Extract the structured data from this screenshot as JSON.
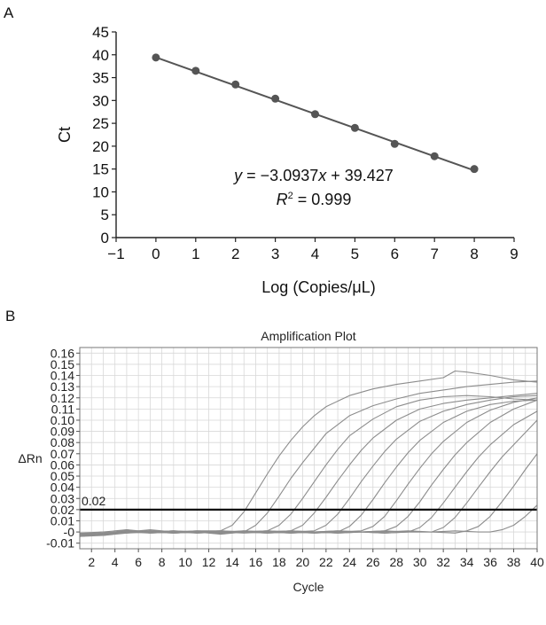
{
  "chart_data": [
    {
      "panel": "A",
      "type": "scatter",
      "xlabel": "Log (Copies/μL)",
      "ylabel": "Ct",
      "xlim": [
        -1,
        9
      ],
      "ylim": [
        0,
        45
      ],
      "xticks": [
        -1,
        0,
        1,
        2,
        3,
        4,
        5,
        6,
        7,
        8,
        9
      ],
      "yticks": [
        0,
        5,
        10,
        15,
        20,
        25,
        30,
        35,
        40,
        45
      ],
      "xtick_labels": [
        "−1",
        "0",
        "1",
        "2",
        "3",
        "4",
        "5",
        "6",
        "7",
        "8",
        "9"
      ],
      "grid": false,
      "points": {
        "x": [
          0,
          1,
          2,
          3,
          4,
          5,
          6,
          7,
          8
        ],
        "y": [
          39.4,
          36.5,
          33.5,
          30.4,
          27.0,
          24.0,
          20.5,
          17.8,
          15.0
        ]
      },
      "fit": {
        "slope": -3.0937,
        "intercept": 39.427
      },
      "equation_prefix": "y",
      "equation_rest": " = −3.0937",
      "equation_x": "x",
      "equation_tail": " + 39.427",
      "r2_label": "R",
      "r2_sup": "2",
      "r2_value": " = 0.999",
      "color": "#555555"
    },
    {
      "panel": "B",
      "type": "line",
      "title": "Amplification Plot",
      "xlabel": "Cycle",
      "ylabel": "ΔRn",
      "xlim": [
        1,
        40
      ],
      "ylim": [
        -0.015,
        0.165
      ],
      "xticks": [
        2,
        4,
        6,
        8,
        10,
        12,
        14,
        16,
        18,
        20,
        22,
        24,
        26,
        28,
        30,
        32,
        34,
        36,
        38,
        40
      ],
      "yticks": [
        -0.01,
        0,
        0.01,
        0.02,
        0.03,
        0.04,
        0.05,
        0.06,
        0.07,
        0.08,
        0.09,
        0.1,
        0.11,
        0.12,
        0.13,
        0.14,
        0.15,
        0.16
      ],
      "ytick_labels": [
        "-0.01",
        "-0",
        "0.01",
        "0.02",
        "0.03",
        "0.04",
        "0.05",
        "0.06",
        "0.07",
        "0.08",
        "0.09",
        "0.10",
        "0.11",
        "0.12",
        "0.13",
        "0.14",
        "0.15",
        "0.16"
      ],
      "grid": true,
      "threshold": {
        "value": 0.02,
        "label": "0.02"
      },
      "curve_color": "#8c8c8c",
      "series": [
        {
          "x": [
            1,
            3,
            5,
            7,
            9,
            11,
            13,
            14,
            15,
            16,
            17,
            18,
            19,
            20,
            21,
            22,
            24,
            26,
            28,
            30,
            32,
            33,
            34,
            36,
            38,
            40
          ],
          "y": [
            -0.002,
            -0.003,
            0.0,
            -0.001,
            0.0,
            0.001,
            0.001,
            0.006,
            0.018,
            0.035,
            0.052,
            0.068,
            0.082,
            0.094,
            0.104,
            0.112,
            0.122,
            0.128,
            0.132,
            0.135,
            0.138,
            0.144,
            0.143,
            0.14,
            0.136,
            0.134
          ]
        },
        {
          "x": [
            1,
            3,
            5,
            7,
            9,
            11,
            13,
            15,
            16,
            17,
            18,
            19,
            20,
            21,
            22,
            24,
            26,
            28,
            30,
            32,
            34,
            36,
            38,
            40
          ],
          "y": [
            -0.004,
            -0.002,
            0.001,
            0.0,
            -0.001,
            0.0,
            -0.002,
            0.0,
            0.006,
            0.017,
            0.032,
            0.048,
            0.062,
            0.075,
            0.088,
            0.104,
            0.113,
            0.119,
            0.124,
            0.127,
            0.13,
            0.132,
            0.134,
            0.135
          ]
        },
        {
          "x": [
            1,
            3,
            5,
            7,
            9,
            11,
            13,
            15,
            17,
            18,
            19,
            20,
            21,
            22,
            23,
            24,
            26,
            28,
            30,
            32,
            34,
            36,
            38,
            40
          ],
          "y": [
            -0.001,
            -0.002,
            0.002,
            0.0,
            0.001,
            0.0,
            -0.001,
            0.0,
            0.001,
            0.006,
            0.016,
            0.03,
            0.045,
            0.06,
            0.074,
            0.086,
            0.101,
            0.112,
            0.118,
            0.121,
            0.122,
            0.121,
            0.119,
            0.118
          ]
        },
        {
          "x": [
            1,
            3,
            5,
            7,
            9,
            11,
            13,
            15,
            17,
            19,
            20,
            21,
            22,
            23,
            24,
            25,
            26,
            28,
            30,
            32,
            34,
            36,
            38,
            40
          ],
          "y": [
            -0.003,
            -0.001,
            0.0,
            0.002,
            0.0,
            0.001,
            0.0,
            -0.001,
            0.0,
            0.001,
            0.006,
            0.017,
            0.031,
            0.046,
            0.06,
            0.073,
            0.084,
            0.1,
            0.11,
            0.115,
            0.118,
            0.12,
            0.122,
            0.124
          ]
        },
        {
          "x": [
            1,
            3,
            5,
            7,
            9,
            11,
            13,
            15,
            17,
            19,
            21,
            22,
            23,
            24,
            25,
            26,
            27,
            28,
            30,
            32,
            34,
            36,
            38,
            40
          ],
          "y": [
            -0.002,
            -0.003,
            0.001,
            0.0,
            -0.001,
            0.0,
            0.001,
            0.0,
            -0.001,
            0.0,
            0.001,
            0.006,
            0.016,
            0.03,
            0.045,
            0.059,
            0.072,
            0.083,
            0.099,
            0.108,
            0.114,
            0.118,
            0.121,
            0.122
          ]
        },
        {
          "x": [
            1,
            3,
            5,
            7,
            9,
            11,
            13,
            15,
            17,
            19,
            21,
            23,
            24,
            25,
            26,
            27,
            28,
            29,
            30,
            32,
            34,
            36,
            38,
            40
          ],
          "y": [
            -0.001,
            0.0,
            0.002,
            -0.001,
            0.0,
            0.0,
            -0.001,
            0.001,
            0.0,
            -0.001,
            0.0,
            0.0,
            0.005,
            0.015,
            0.029,
            0.044,
            0.058,
            0.071,
            0.082,
            0.098,
            0.108,
            0.114,
            0.117,
            0.118
          ]
        },
        {
          "x": [
            1,
            3,
            5,
            7,
            9,
            11,
            13,
            15,
            17,
            19,
            21,
            23,
            25,
            26,
            27,
            28,
            29,
            30,
            31,
            32,
            34,
            36,
            38,
            40
          ],
          "y": [
            -0.004,
            -0.002,
            0.0,
            0.001,
            0.0,
            -0.001,
            0.0,
            0.0,
            0.001,
            0.0,
            -0.001,
            0.0,
            0.001,
            0.005,
            0.014,
            0.028,
            0.043,
            0.057,
            0.07,
            0.081,
            0.098,
            0.109,
            0.116,
            0.12
          ]
        },
        {
          "x": [
            1,
            3,
            5,
            7,
            9,
            11,
            13,
            15,
            17,
            19,
            21,
            23,
            25,
            27,
            28,
            29,
            30,
            31,
            32,
            33,
            34,
            36,
            38,
            40
          ],
          "y": [
            -0.002,
            -0.001,
            0.001,
            0.0,
            0.001,
            0.0,
            -0.001,
            0.0,
            0.0,
            0.001,
            0.0,
            -0.001,
            0.0,
            0.001,
            0.005,
            0.014,
            0.027,
            0.042,
            0.056,
            0.069,
            0.08,
            0.098,
            0.11,
            0.118
          ]
        },
        {
          "x": [
            1,
            3,
            5,
            7,
            9,
            11,
            13,
            15,
            17,
            19,
            21,
            23,
            25,
            27,
            29,
            30,
            31,
            32,
            33,
            34,
            35,
            36,
            38,
            40
          ],
          "y": [
            -0.003,
            -0.002,
            0.0,
            0.001,
            -0.001,
            0.0,
            0.0,
            0.001,
            0.0,
            -0.001,
            0.0,
            0.001,
            0.0,
            -0.001,
            0.0,
            0.004,
            0.013,
            0.026,
            0.04,
            0.054,
            0.067,
            0.078,
            0.096,
            0.108
          ]
        },
        {
          "x": [
            1,
            3,
            5,
            7,
            9,
            11,
            13,
            15,
            17,
            19,
            21,
            23,
            25,
            27,
            29,
            31,
            32,
            33,
            34,
            35,
            36,
            37,
            38,
            40
          ],
          "y": [
            -0.002,
            0.0,
            -0.001,
            0.001,
            0.0,
            0.0,
            -0.001,
            0.0,
            0.001,
            0.0,
            -0.001,
            0.0,
            0.0,
            0.001,
            0.0,
            0.0,
            0.004,
            0.013,
            0.026,
            0.04,
            0.054,
            0.067,
            0.078,
            0.1
          ]
        },
        {
          "x": [
            1,
            3,
            5,
            7,
            9,
            11,
            13,
            15,
            17,
            19,
            21,
            23,
            25,
            27,
            29,
            31,
            33,
            34,
            35,
            36,
            37,
            38,
            39,
            40
          ],
          "y": [
            -0.001,
            -0.002,
            0.0,
            0.0,
            0.001,
            -0.001,
            0.0,
            0.0,
            0.0,
            0.001,
            0.0,
            -0.001,
            0.0,
            0.0,
            0.001,
            0.0,
            -0.001,
            0.001,
            0.005,
            0.014,
            0.027,
            0.041,
            0.056,
            0.07
          ]
        },
        {
          "x": [
            1,
            3,
            5,
            7,
            9,
            11,
            13,
            15,
            17,
            19,
            21,
            23,
            25,
            27,
            29,
            31,
            33,
            35,
            36,
            37,
            38,
            39,
            40
          ],
          "y": [
            -0.004,
            -0.003,
            -0.001,
            0.0,
            0.0,
            0.0,
            0.001,
            0.0,
            -0.001,
            0.0,
            0.0,
            0.001,
            0.0,
            -0.001,
            0.0,
            0.0,
            0.001,
            0.0,
            0.0,
            0.002,
            0.006,
            0.014,
            0.024
          ]
        }
      ]
    }
  ]
}
